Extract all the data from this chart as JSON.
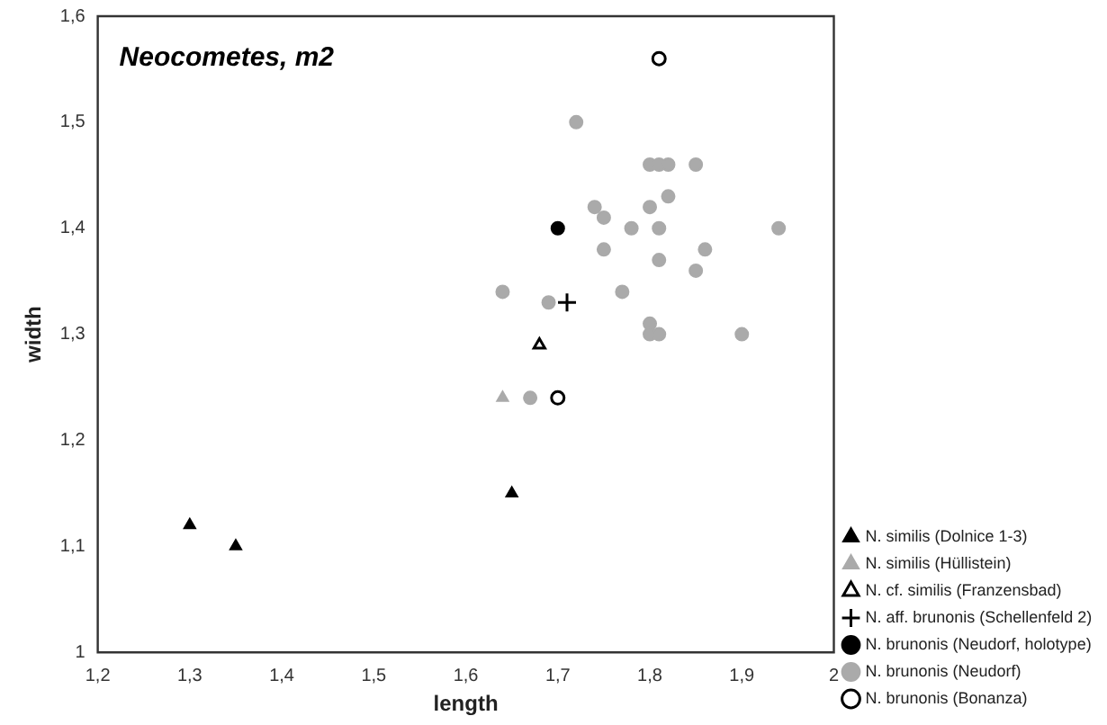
{
  "chart_data": {
    "type": "scatter",
    "title": "Neocometes, m2",
    "xlabel": "length",
    "ylabel": "width",
    "xlim": [
      1.2,
      2
    ],
    "ylim": [
      1,
      1.6
    ],
    "xticks": [
      {
        "value": 1.2,
        "label": "1,2"
      },
      {
        "value": 1.3,
        "label": "1,3"
      },
      {
        "value": 1.4,
        "label": "1,4"
      },
      {
        "value": 1.5,
        "label": "1,5"
      },
      {
        "value": 1.6,
        "label": "1,6"
      },
      {
        "value": 1.7,
        "label": "1,7"
      },
      {
        "value": 1.8,
        "label": "1,8"
      },
      {
        "value": 1.9,
        "label": "1,9"
      },
      {
        "value": 2,
        "label": "2"
      }
    ],
    "yticks": [
      {
        "value": 1,
        "label": "1"
      },
      {
        "value": 1.1,
        "label": "1,1"
      },
      {
        "value": 1.2,
        "label": "1,2"
      },
      {
        "value": 1.3,
        "label": "1,3"
      },
      {
        "value": 1.4,
        "label": "1,4"
      },
      {
        "value": 1.5,
        "label": "1,5"
      },
      {
        "value": 1.6,
        "label": "1,6"
      }
    ],
    "grid": false,
    "legend": "right",
    "series": [
      {
        "name": "N. similis (Dolnice 1-3)",
        "color": "#000000",
        "marker": "triangle",
        "x": [
          1.3,
          1.35,
          1.65
        ],
        "values": [
          1.12,
          1.1,
          1.15
        ]
      },
      {
        "name": "N. similis (Hüllistein)",
        "color": "#aaaaaa",
        "marker": "triangle",
        "x": [
          1.64
        ],
        "values": [
          1.24
        ]
      },
      {
        "name": "N. cf. similis (Franzensbad)",
        "color": "#000000",
        "marker": "triangle-open",
        "x": [
          1.68
        ],
        "values": [
          1.29
        ]
      },
      {
        "name": "N. aff. brunonis (Schellenfeld 2)",
        "color": "#000000",
        "marker": "cross",
        "x": [
          1.71
        ],
        "values": [
          1.33
        ]
      },
      {
        "name": "N. brunonis (Neudorf, holotype)",
        "color": "#000000",
        "marker": "circle",
        "x": [
          1.7
        ],
        "values": [
          1.4
        ]
      },
      {
        "name": "N. brunonis (Neudorf)",
        "color": "#aaaaaa",
        "marker": "circle",
        "x": [
          1.72,
          1.8,
          1.81,
          1.82,
          1.85,
          1.82,
          1.74,
          1.8,
          1.75,
          1.78,
          1.81,
          1.94,
          1.75,
          1.81,
          1.86,
          1.85,
          1.77,
          1.64,
          1.69,
          1.8,
          1.8,
          1.81,
          1.9,
          1.67
        ],
        "values": [
          1.5,
          1.46,
          1.46,
          1.46,
          1.46,
          1.43,
          1.42,
          1.42,
          1.41,
          1.4,
          1.4,
          1.4,
          1.38,
          1.37,
          1.38,
          1.36,
          1.34,
          1.34,
          1.33,
          1.31,
          1.3,
          1.3,
          1.3,
          1.24
        ]
      },
      {
        "name": "N. brunonis (Bonanza)",
        "color": "#000000",
        "marker": "circle-open",
        "x": [
          1.81,
          1.7
        ],
        "values": [
          1.56,
          1.24
        ]
      }
    ]
  }
}
